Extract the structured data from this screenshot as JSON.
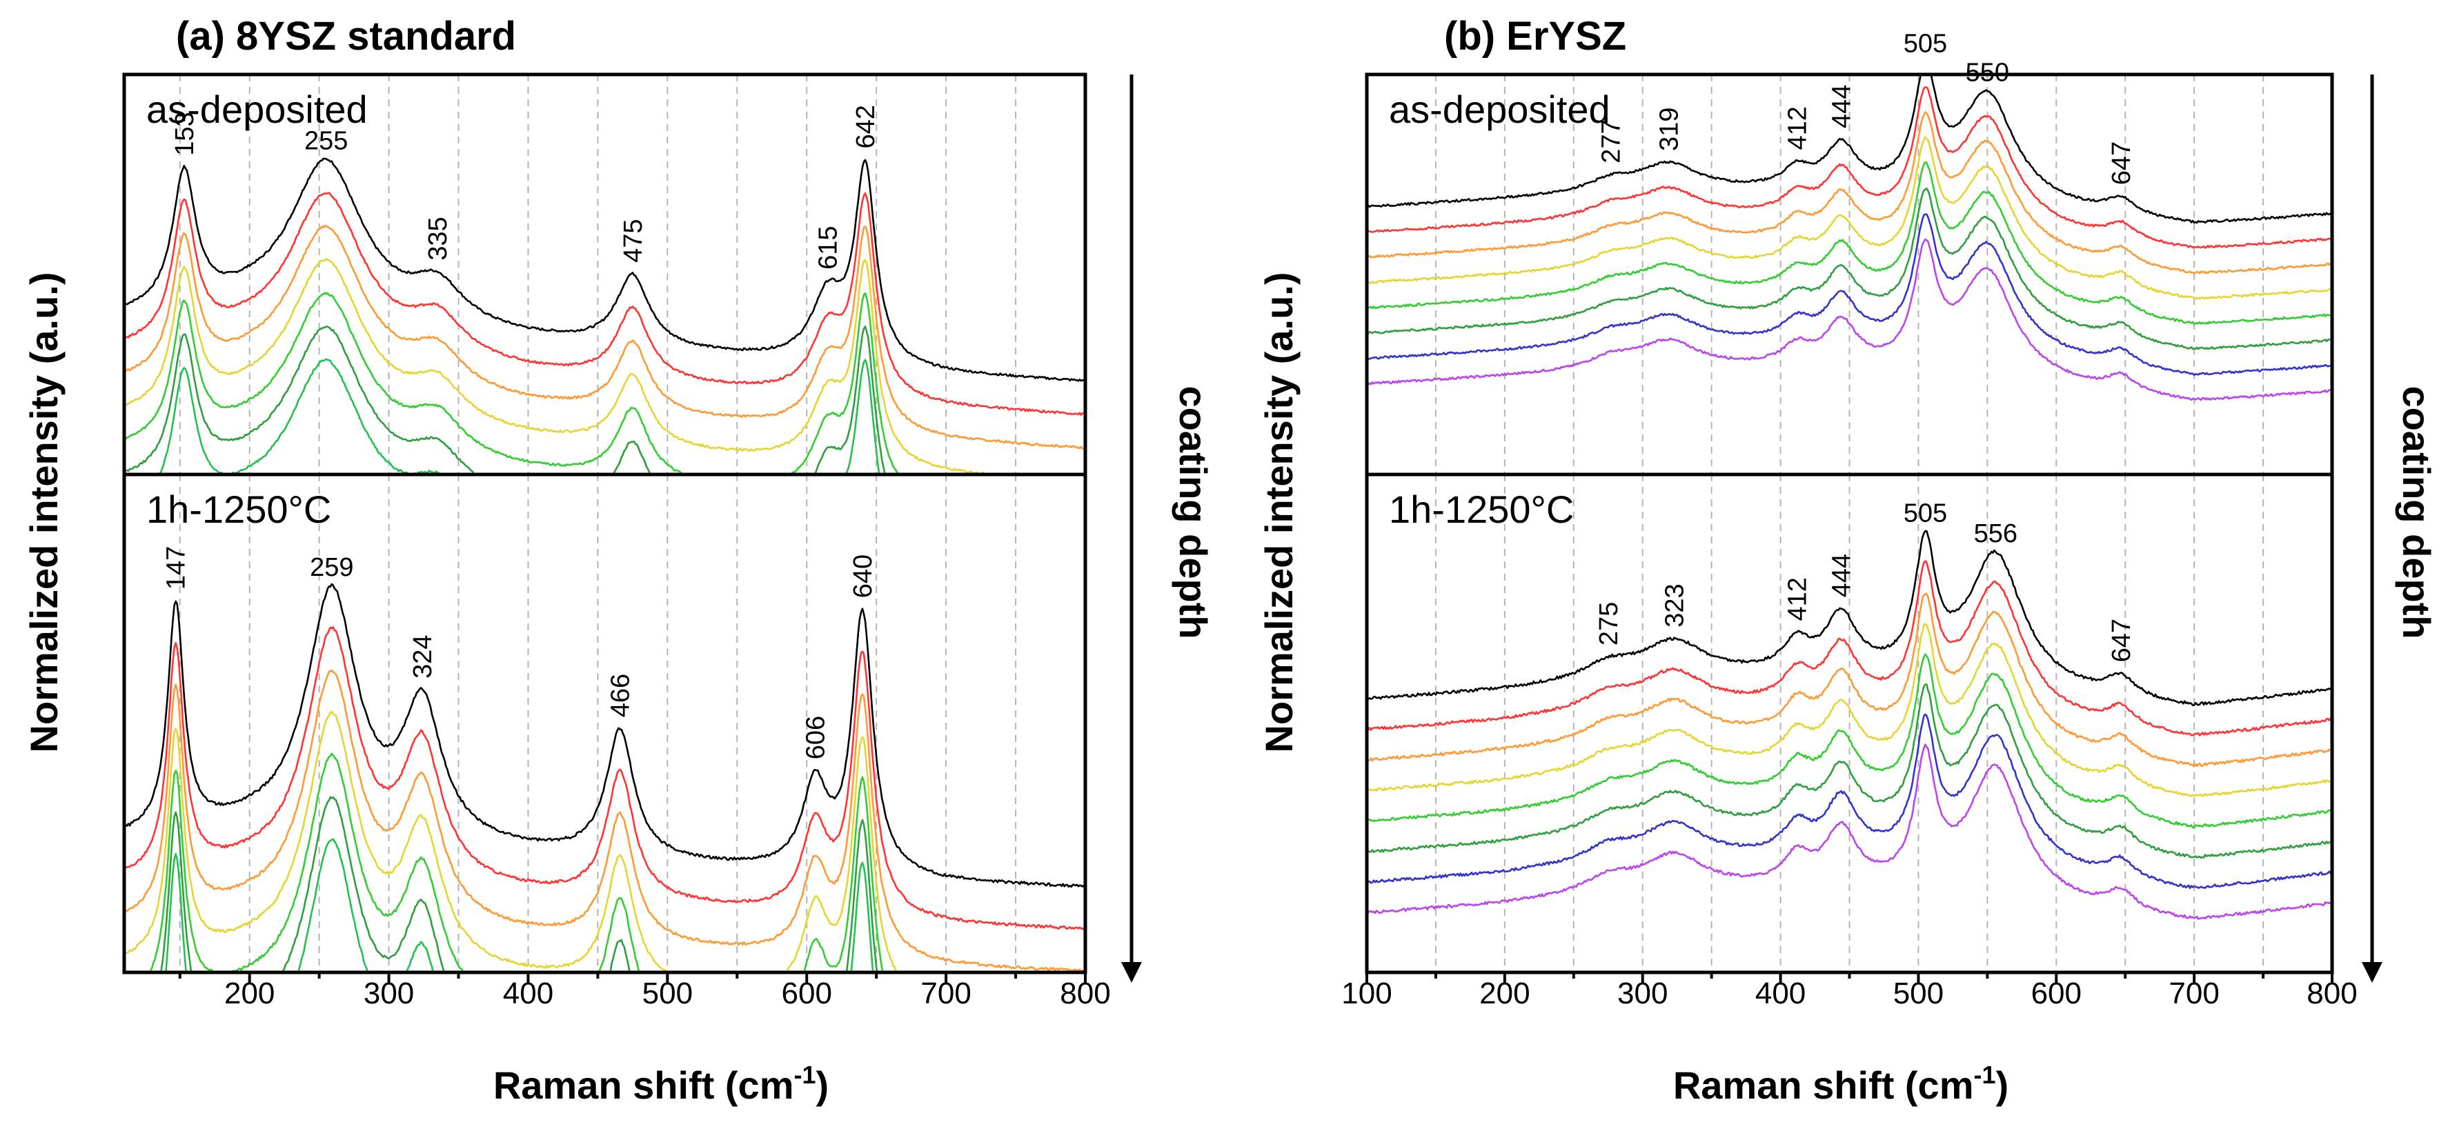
{
  "chart_data": [
    {
      "type": "line",
      "id": "a",
      "title": "(a) 8YSZ standard",
      "xlabel": "Raman shift (cm",
      "xlabel_sup": "-1",
      "xlabel_end": ")",
      "ylabel": "Normalized intensity (a.u.)",
      "depth_label": "coating depth",
      "xlim": [
        110,
        800
      ],
      "xticks": [
        200,
        300,
        400,
        500,
        600,
        700,
        800
      ],
      "subpanels": [
        {
          "label": "as-deposited",
          "colors": [
            "#000000",
            "#ff3333",
            "#ff9933",
            "#e6d430",
            "#33cc33",
            "#2e9e3e",
            "#22c050"
          ],
          "offsets": [
            0,
            -0.09,
            -0.18,
            -0.27,
            -0.36,
            -0.45,
            -0.54
          ],
          "baseline": [
            [
              110,
              0.38
            ],
            [
              200,
              0.4
            ],
            [
              300,
              0.36
            ],
            [
              400,
              0.32
            ],
            [
              500,
              0.29
            ],
            [
              600,
              0.26
            ],
            [
              700,
              0.23
            ],
            [
              800,
              0.21
            ]
          ],
          "peaks": [
            [
              153,
              0.36,
              10
            ],
            [
              255,
              0.42,
              32
            ],
            [
              335,
              0.1,
              22
            ],
            [
              475,
              0.19,
              14
            ],
            [
              615,
              0.17,
              14
            ],
            [
              642,
              0.52,
              9
            ]
          ],
          "peak_labels": [
            {
              "pos": 153,
              "text": "153",
              "rot": true
            },
            {
              "pos": 255,
              "text": "255",
              "rot": false
            },
            {
              "pos": 335,
              "text": "335",
              "rot": true
            },
            {
              "pos": 475,
              "text": "475",
              "rot": true
            },
            {
              "pos": 615,
              "text": "615",
              "rot": true
            },
            {
              "pos": 642,
              "text": "642",
              "rot": true
            }
          ]
        },
        {
          "label": "1h-1250°C",
          "colors": [
            "#000000",
            "#ff3333",
            "#ff9933",
            "#e6d430",
            "#33cc33",
            "#2e9e3e",
            "#22c050"
          ],
          "offsets": [
            0,
            -0.09,
            -0.18,
            -0.27,
            -0.36,
            -0.45,
            -0.54
          ],
          "baseline": [
            [
              110,
              0.25
            ],
            [
              200,
              0.27
            ],
            [
              300,
              0.24
            ],
            [
              400,
              0.22
            ],
            [
              500,
              0.2
            ],
            [
              600,
              0.18
            ],
            [
              700,
              0.16
            ],
            [
              800,
              0.15
            ]
          ],
          "peaks": [
            [
              147,
              0.48,
              7
            ],
            [
              259,
              0.52,
              22
            ],
            [
              324,
              0.28,
              17
            ],
            [
              466,
              0.27,
              12
            ],
            [
              606,
              0.18,
              11
            ],
            [
              640,
              0.55,
              9
            ]
          ],
          "peak_labels": [
            {
              "pos": 147,
              "text": "147",
              "rot": true
            },
            {
              "pos": 259,
              "text": "259",
              "rot": false
            },
            {
              "pos": 324,
              "text": "324",
              "rot": true
            },
            {
              "pos": 466,
              "text": "466",
              "rot": true
            },
            {
              "pos": 606,
              "text": "606",
              "rot": true
            },
            {
              "pos": 640,
              "text": "640",
              "rot": true
            }
          ]
        }
      ]
    },
    {
      "type": "line",
      "id": "b",
      "title": "(b) ErYSZ",
      "xlabel": "Raman shift (cm",
      "xlabel_sup": "-1",
      "xlabel_end": ")",
      "ylabel": "Normalized intensity (a.u.)",
      "depth_label": "coating depth",
      "xlim": [
        100,
        800
      ],
      "xticks": [
        100,
        200,
        300,
        400,
        500,
        600,
        700,
        800
      ],
      "subpanels": [
        {
          "label": "as-deposited",
          "colors": [
            "#000000",
            "#ff3333",
            "#ff9933",
            "#e6d430",
            "#33cc33",
            "#2e9e3e",
            "#3333cc",
            "#bb44ee"
          ],
          "offsets": [
            0,
            -0.068,
            -0.136,
            -0.204,
            -0.272,
            -0.34,
            -0.408,
            -0.476
          ],
          "baseline": [
            [
              100,
              0.68
            ],
            [
              200,
              0.7
            ],
            [
              300,
              0.72
            ],
            [
              400,
              0.72
            ],
            [
              500,
              0.7
            ],
            [
              600,
              0.67
            ],
            [
              700,
              0.63
            ],
            [
              800,
              0.66
            ]
          ],
          "peaks": [
            [
              277,
              0.03,
              20
            ],
            [
              319,
              0.07,
              26
            ],
            [
              412,
              0.05,
              12
            ],
            [
              444,
              0.12,
              14
            ],
            [
              505,
              0.3,
              10
            ],
            [
              550,
              0.29,
              24
            ],
            [
              647,
              0.04,
              12
            ]
          ],
          "peak_labels": [
            {
              "pos": 277,
              "text": "277",
              "rot": true
            },
            {
              "pos": 319,
              "text": "319",
              "rot": true
            },
            {
              "pos": 412,
              "text": "412",
              "rot": true
            },
            {
              "pos": 444,
              "text": "444",
              "rot": true
            },
            {
              "pos": 505,
              "text": "505",
              "rot": false
            },
            {
              "pos": 550,
              "text": "550",
              "rot": false
            },
            {
              "pos": 647,
              "text": "647",
              "rot": true
            }
          ]
        },
        {
          "label": "1h-1250°C",
          "colors": [
            "#000000",
            "#ff3333",
            "#ff9933",
            "#e6d430",
            "#33cc33",
            "#2e9e3e",
            "#3333cc",
            "#bb44ee"
          ],
          "offsets": [
            0,
            -0.065,
            -0.13,
            -0.195,
            -0.26,
            -0.325,
            -0.39,
            -0.455
          ],
          "baseline": [
            [
              100,
              0.55
            ],
            [
              200,
              0.57
            ],
            [
              300,
              0.6
            ],
            [
              400,
              0.6
            ],
            [
              500,
              0.59
            ],
            [
              600,
              0.56
            ],
            [
              700,
              0.53
            ],
            [
              800,
              0.57
            ]
          ],
          "peaks": [
            [
              275,
              0.03,
              20
            ],
            [
              323,
              0.07,
              26
            ],
            [
              412,
              0.06,
              12
            ],
            [
              444,
              0.12,
              14
            ],
            [
              505,
              0.26,
              9
            ],
            [
              556,
              0.28,
              24
            ],
            [
              647,
              0.04,
              12
            ]
          ],
          "peak_labels": [
            {
              "pos": 275,
              "text": "275",
              "rot": true
            },
            {
              "pos": 323,
              "text": "323",
              "rot": true
            },
            {
              "pos": 412,
              "text": "412",
              "rot": true
            },
            {
              "pos": 444,
              "text": "444",
              "rot": true
            },
            {
              "pos": 505,
              "text": "505",
              "rot": false
            },
            {
              "pos": 556,
              "text": "556",
              "rot": false
            },
            {
              "pos": 647,
              "text": "647",
              "rot": true
            }
          ]
        }
      ]
    }
  ]
}
